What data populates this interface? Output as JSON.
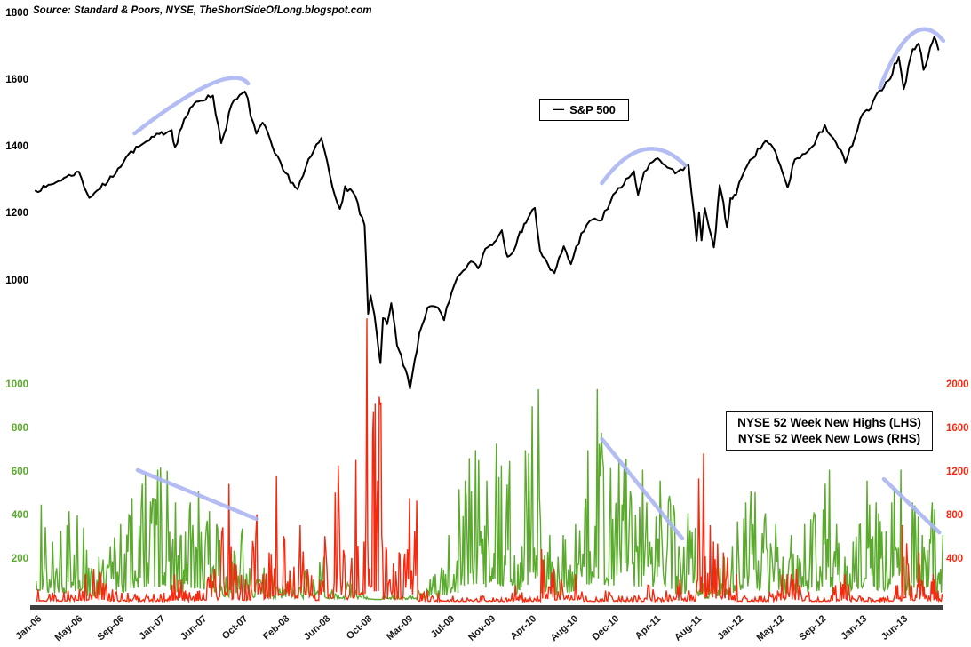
{
  "source_note": "Source: Standard & Poors, NYSE, TheShortSideOfLong.blogspot.com",
  "legend_top": {
    "marker": "—",
    "label": "S&P 500"
  },
  "legend_bottom": {
    "highs": "NYSE 52 Week New Highs (LHS)",
    "lows": "NYSE 52 Week New Lows (RHS)"
  },
  "colors": {
    "sp500": "#000000",
    "highs": "#5aab2c",
    "lows": "#f5290f",
    "annotation": "#abb5f2",
    "axis_bar": "#3f3f3f",
    "x_labels": "#1a1a1a"
  },
  "chart_data": {
    "type": "line",
    "title": "",
    "x_axis_note": "month index 0 = Jan-2006, weekly-style series",
    "x_ticks": [
      {
        "label": "Jan-06",
        "month": 0
      },
      {
        "label": "May-06",
        "month": 4
      },
      {
        "label": "Sep-06",
        "month": 8
      },
      {
        "label": "Jan-07",
        "month": 12
      },
      {
        "label": "Jun-07",
        "month": 17
      },
      {
        "label": "Oct-07",
        "month": 21
      },
      {
        "label": "Feb-08",
        "month": 25
      },
      {
        "label": "Jun-08",
        "month": 29
      },
      {
        "label": "Oct-08",
        "month": 33
      },
      {
        "label": "Mar-09",
        "month": 38
      },
      {
        "label": "Jul-09",
        "month": 42
      },
      {
        "label": "Nov-09",
        "month": 46
      },
      {
        "label": "Apr-10",
        "month": 51
      },
      {
        "label": "Aug-10",
        "month": 55
      },
      {
        "label": "Dec-10",
        "month": 59
      },
      {
        "label": "Apr-11",
        "month": 63
      },
      {
        "label": "Aug-11",
        "month": 67
      },
      {
        "label": "Jan-12",
        "month": 72
      },
      {
        "label": "May-12",
        "month": 76
      },
      {
        "label": "Sep-12",
        "month": 80
      },
      {
        "label": "Jan-13",
        "month": 84
      },
      {
        "label": "Jun-13",
        "month": 89
      }
    ],
    "top_panel": {
      "series_name": "S&P 500",
      "yticks": [
        1800,
        1600,
        1400,
        1200,
        1000
      ],
      "ylim": [
        650,
        1800
      ],
      "anchors_month_value": [
        [
          0,
          1268
        ],
        [
          1,
          1280
        ],
        [
          2,
          1294
        ],
        [
          3,
          1310
        ],
        [
          4.2,
          1325
        ],
        [
          5.2,
          1247
        ],
        [
          6,
          1270
        ],
        [
          7,
          1295
        ],
        [
          8,
          1335
        ],
        [
          9,
          1377
        ],
        [
          10,
          1400
        ],
        [
          11,
          1418
        ],
        [
          12,
          1438
        ],
        [
          13.5,
          1450
        ],
        [
          13.9,
          1399
        ],
        [
          15,
          1482
        ],
        [
          16.5,
          1535
        ],
        [
          18.2,
          1553
        ],
        [
          19,
          1411
        ],
        [
          20,
          1526
        ],
        [
          21.3,
          1565
        ],
        [
          22.4,
          1439
        ],
        [
          23,
          1472
        ],
        [
          24.2,
          1380
        ],
        [
          25,
          1330
        ],
        [
          26.4,
          1273
        ],
        [
          28,
          1390
        ],
        [
          28.7,
          1426
        ],
        [
          29.8,
          1278
        ],
        [
          30.5,
          1214
        ],
        [
          31,
          1282
        ],
        [
          32,
          1252
        ],
        [
          32.9,
          1165
        ],
        [
          33.3,
          900
        ],
        [
          33.6,
          955
        ],
        [
          34.3,
          850
        ],
        [
          34.8,
          752
        ],
        [
          35.1,
          887
        ],
        [
          35.6,
          869
        ],
        [
          35.9,
          903
        ],
        [
          36.1,
          932
        ],
        [
          36.8,
          805
        ],
        [
          37.8,
          735
        ],
        [
          38.3,
          676
        ],
        [
          39.2,
          842
        ],
        [
          40,
          919
        ],
        [
          41,
          919
        ],
        [
          41.6,
          881
        ],
        [
          42.6,
          987
        ],
        [
          43.2,
          1020
        ],
        [
          44.2,
          1057
        ],
        [
          44.9,
          1036
        ],
        [
          45.6,
          1095
        ],
        [
          46.6,
          1115
        ],
        [
          47.5,
          1150
        ],
        [
          48.2,
          1071
        ],
        [
          49.2,
          1104
        ],
        [
          50.2,
          1169
        ],
        [
          51.4,
          1217
        ],
        [
          51.9,
          1089
        ],
        [
          52.9,
          1031
        ],
        [
          53.3,
          1022
        ],
        [
          54.2,
          1102
        ],
        [
          54.9,
          1049
        ],
        [
          55.9,
          1141
        ],
        [
          57,
          1183
        ],
        [
          57.9,
          1180
        ],
        [
          59,
          1257
        ],
        [
          60,
          1286
        ],
        [
          61,
          1327
        ],
        [
          61.4,
          1256
        ],
        [
          62,
          1325
        ],
        [
          63.1,
          1363
        ],
        [
          64,
          1345
        ],
        [
          65,
          1320
        ],
        [
          66.3,
          1345
        ],
        [
          67.1,
          1119
        ],
        [
          67.4,
          1204
        ],
        [
          67.7,
          1120
        ],
        [
          68.1,
          1216
        ],
        [
          68.9,
          1131
        ],
        [
          69.2,
          1099
        ],
        [
          69.9,
          1285
        ],
        [
          70.8,
          1158
        ],
        [
          71.2,
          1246
        ],
        [
          71.9,
          1257
        ],
        [
          72.5,
          1312
        ],
        [
          73.5,
          1365
        ],
        [
          74.8,
          1419
        ],
        [
          75.5,
          1397
        ],
        [
          76.9,
          1278
        ],
        [
          77.6,
          1362
        ],
        [
          78.6,
          1379
        ],
        [
          79.5,
          1406
        ],
        [
          80.5,
          1465
        ],
        [
          81.6,
          1412
        ],
        [
          82.5,
          1353
        ],
        [
          83.4,
          1426
        ],
        [
          84.2,
          1498
        ],
        [
          85.2,
          1514
        ],
        [
          86.3,
          1569
        ],
        [
          87.3,
          1597
        ],
        [
          88.6,
          1669
        ],
        [
          89.2,
          1573
        ],
        [
          90.3,
          1692
        ],
        [
          91,
          1709
        ],
        [
          91.6,
          1630
        ],
        [
          92.4,
          1697
        ],
        [
          92.9,
          1729
        ],
        [
          93.4,
          1691
        ]
      ]
    },
    "bottom_panel": {
      "left_axis": {
        "series_name": "NYSE 52 Week New Highs",
        "yticks": [
          1000,
          800,
          600,
          400,
          200
        ],
        "ylim": [
          0,
          1000
        ]
      },
      "right_axis": {
        "series_name": "NYSE 52 Week New Lows",
        "yticks": [
          2000,
          1600,
          1200,
          800,
          400
        ],
        "ylim": [
          0,
          2000
        ]
      },
      "highs_monthly_peaks": [
        450,
        280,
        330,
        420,
        400,
        160,
        210,
        300,
        360,
        480,
        590,
        610,
        620,
        460,
        310,
        460,
        510,
        420,
        360,
        120,
        310,
        340,
        110,
        160,
        80,
        110,
        70,
        150,
        210,
        60,
        40,
        90,
        60,
        25,
        15,
        35,
        40,
        25,
        30,
        60,
        130,
        160,
        310,
        560,
        700,
        560,
        730,
        630,
        650,
        260,
        700,
        980,
        310,
        210,
        310,
        360,
        700,
        980,
        620,
        660,
        660,
        610,
        460,
        560,
        490,
        260,
        410,
        90,
        70,
        160,
        210,
        260,
        460,
        510,
        410,
        360,
        210,
        310,
        360,
        410,
        610,
        360,
        210,
        360,
        560,
        460,
        410,
        460,
        610,
        210,
        460,
        310,
        460,
        310
      ],
      "lows_monthly_peaks": [
        120,
        90,
        100,
        110,
        260,
        310,
        280,
        120,
        90,
        80,
        70,
        80,
        90,
        260,
        210,
        110,
        110,
        260,
        310,
        1090,
        360,
        260,
        810,
        460,
        1160,
        610,
        710,
        310,
        210,
        610,
        1260,
        410,
        1310,
        2610,
        1890,
        510,
        360,
        460,
        960,
        110,
        60,
        90,
        60,
        40,
        35,
        60,
        45,
        40,
        90,
        160,
        45,
        60,
        490,
        310,
        160,
        260,
        60,
        45,
        110,
        60,
        45,
        60,
        160,
        45,
        110,
        210,
        110,
        1370,
        710,
        560,
        460,
        260,
        60,
        45,
        60,
        110,
        260,
        310,
        160,
        45,
        40,
        160,
        260,
        60,
        45,
        40,
        45,
        60,
        160,
        710,
        160,
        460,
        260,
        110
      ]
    },
    "annotations": [
      {
        "panel": "top",
        "shape": "arc",
        "from": [
          9.6,
          1440
        ],
        "ctrl": [
          19.8,
          1660
        ],
        "to": [
          21.6,
          1589
        ]
      },
      {
        "panel": "top",
        "shape": "arc",
        "from": [
          57.9,
          1291
        ],
        "ctrl": [
          62,
          1466
        ],
        "to": [
          66,
          1344
        ]
      },
      {
        "panel": "top",
        "shape": "arc",
        "from": [
          86.3,
          1576
        ],
        "ctrl": [
          90.3,
          1830
        ],
        "to": [
          94,
          1717
        ]
      },
      {
        "panel": "bottom",
        "shape": "line",
        "from": [
          9.9,
          608
        ],
        "to": [
          22.4,
          384
        ]
      },
      {
        "panel": "bottom",
        "shape": "line",
        "from": [
          57.9,
          751
        ],
        "to": [
          65.7,
          294
        ]
      },
      {
        "panel": "bottom",
        "shape": "line",
        "from": [
          86.8,
          567
        ],
        "to": [
          93.5,
          322
        ]
      }
    ]
  }
}
